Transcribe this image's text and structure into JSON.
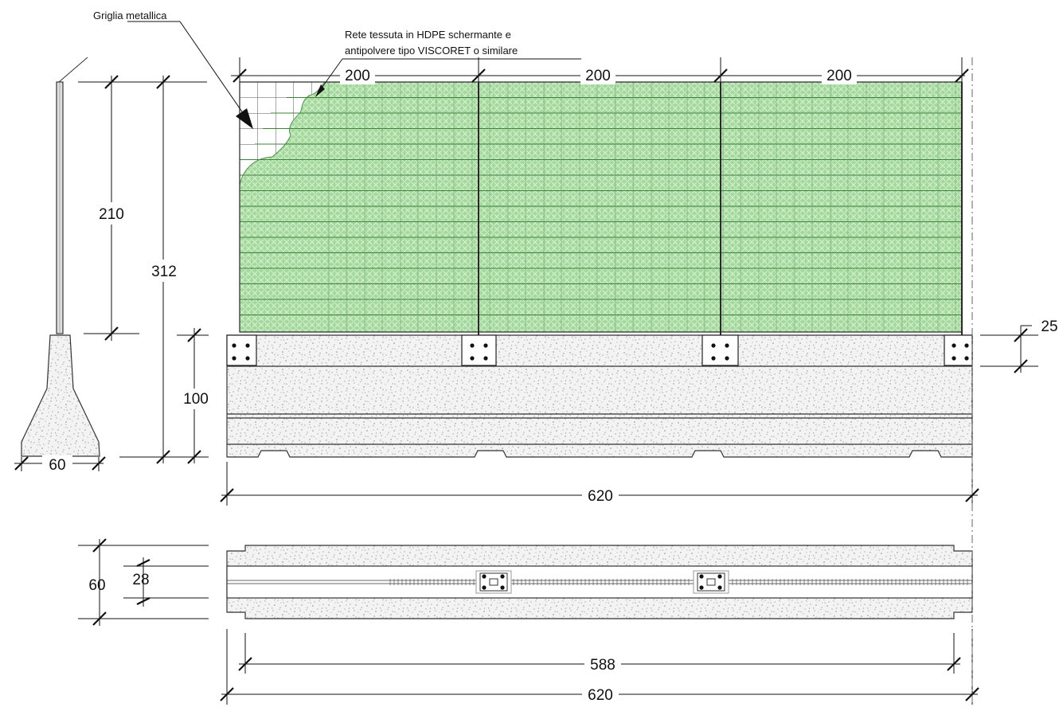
{
  "labels": {
    "metal_grid": "Griglia metallica",
    "hdpe_net_line1": "Rete tessuta in HDPE schermante e",
    "hdpe_net_line2": "antipolvere tipo VISCORET o similare"
  },
  "dimensions": {
    "panel_1": "200",
    "panel_2": "200",
    "panel_3": "200",
    "post_height": "210",
    "total_height": "312",
    "base_height": "100",
    "base_width": "60",
    "top_offset": "25",
    "total_length_elev": "620",
    "plan_width": "60",
    "plan_slot": "28",
    "plan_inner_length": "588",
    "plan_total_length": "620"
  },
  "colors": {
    "mesh_fill": "#a8dca0",
    "mesh_line": "#3f7f3f",
    "grid_line": "#555555",
    "concrete": "#f2f2f2",
    "outline": "#222222"
  }
}
